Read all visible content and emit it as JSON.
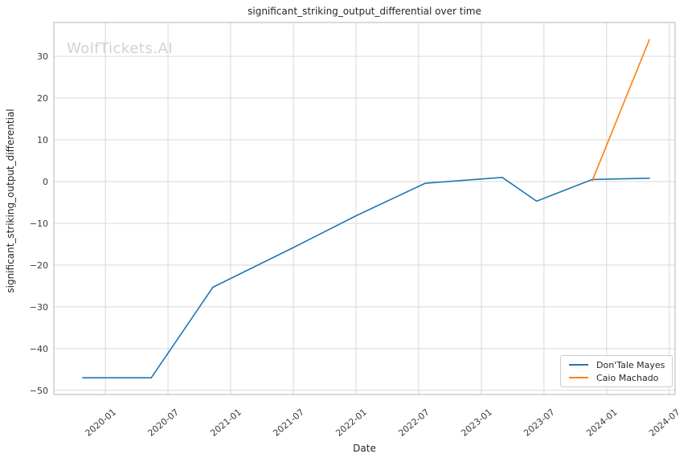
{
  "watermark": "WolfTickets.AI",
  "chart_data": {
    "type": "line",
    "title": "significant_striking_output_differential over time",
    "xlabel": "Date",
    "ylabel": "significant_striking_output_differential",
    "grid": true,
    "legend_position": "lower right",
    "xlim": [
      "2019-08-03",
      "2024-07-18"
    ],
    "ylim": [
      -51,
      38.1
    ],
    "x_ticks": [
      "2020-01",
      "2020-07",
      "2021-01",
      "2021-07",
      "2022-01",
      "2022-07",
      "2023-01",
      "2023-07",
      "2024-01",
      "2024-07"
    ],
    "y_ticks": [
      {
        "value": 30,
        "label": "30"
      },
      {
        "value": 20,
        "label": "20"
      },
      {
        "value": 10,
        "label": "10"
      },
      {
        "value": 0,
        "label": "0"
      },
      {
        "value": -10,
        "label": "−10"
      },
      {
        "value": -20,
        "label": "−20"
      },
      {
        "value": -30,
        "label": "−30"
      },
      {
        "value": -40,
        "label": "−40"
      },
      {
        "value": -50,
        "label": "−50"
      }
    ],
    "series": [
      {
        "name": "Don'Tale Mayes",
        "color": "#1f77b4",
        "points": [
          [
            "2019-10-26",
            -47.0
          ],
          [
            "2020-05-13",
            -47.0
          ],
          [
            "2020-11-10",
            -25.3
          ],
          [
            "2021-07-01",
            -15.8
          ],
          [
            "2022-01-01",
            -8.2
          ],
          [
            "2022-07-20",
            -0.4
          ],
          [
            "2023-03-01",
            1.0
          ],
          [
            "2023-06-10",
            -4.7
          ],
          [
            "2023-11-20",
            0.5
          ],
          [
            "2024-05-04",
            0.8
          ]
        ]
      },
      {
        "name": "Caio Machado",
        "color": "#ff7f0e",
        "points": [
          [
            "2023-11-20",
            0.2
          ],
          [
            "2024-05-04",
            34.0
          ]
        ]
      }
    ],
    "style": {
      "grid_color": "#d9d9d9",
      "spine_color": "#c0c0c0",
      "tick_text_color": "#3b3b3b",
      "text_color": "#262626",
      "watermark_color": "#d2d2d2",
      "background": "#ffffff"
    }
  }
}
